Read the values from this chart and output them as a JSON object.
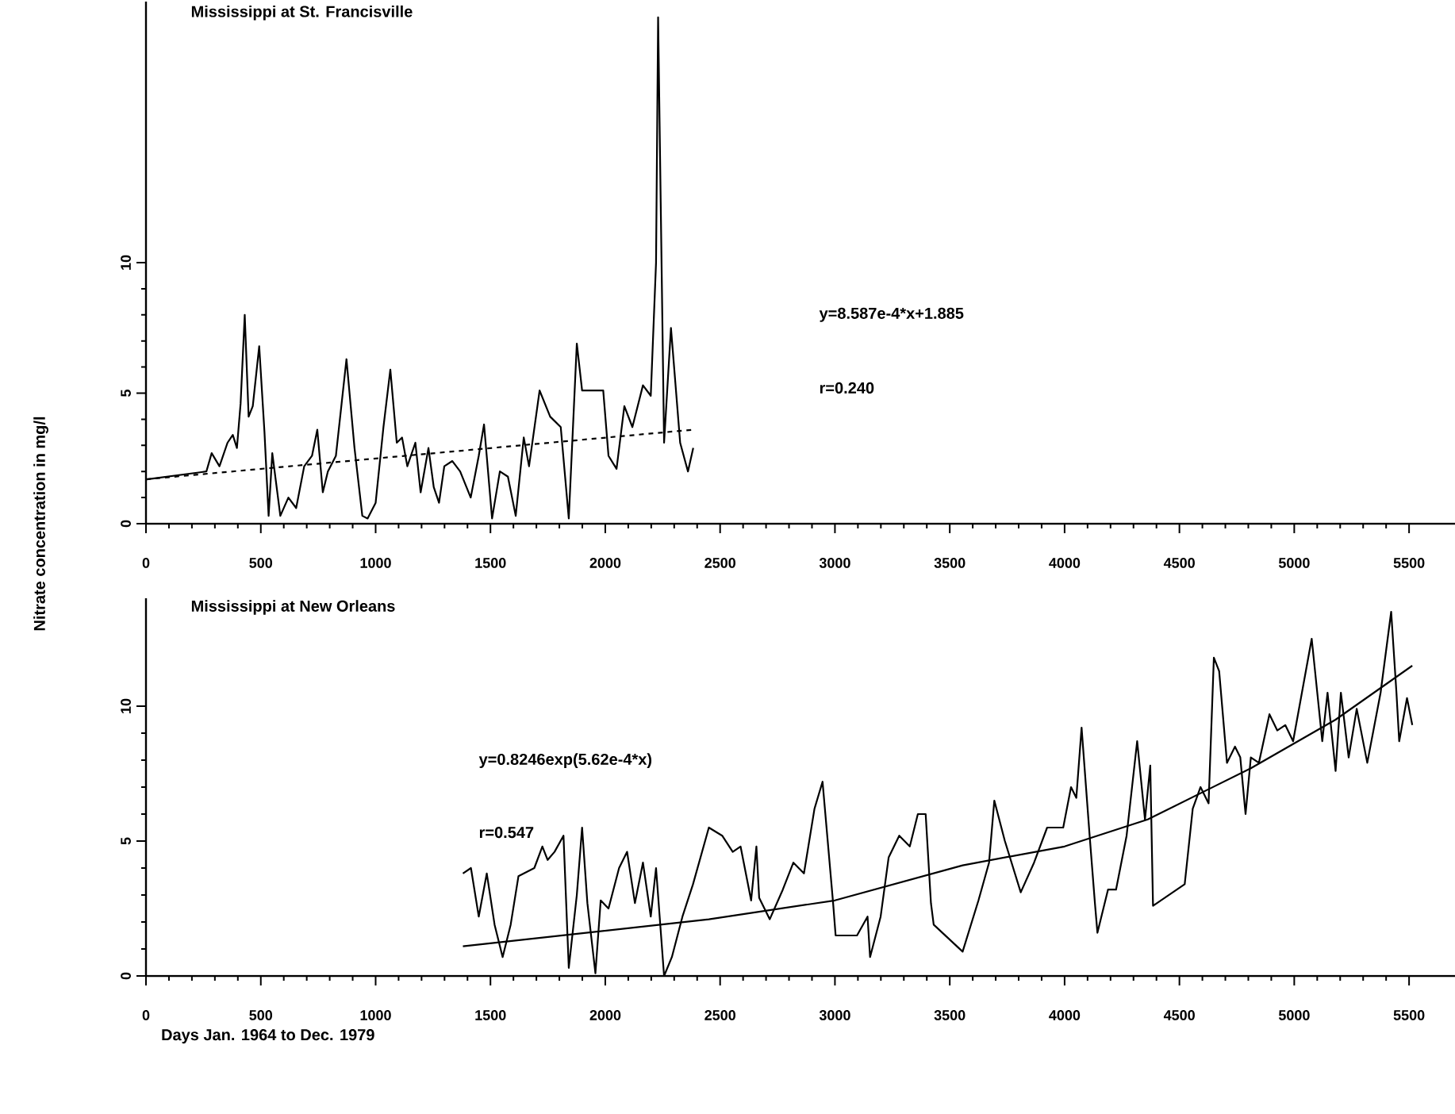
{
  "chart_data": [
    {
      "type": "line",
      "title": "Mississippi at St. Francisville",
      "ylabel": "Nitrate concentration in mg/l",
      "annotations": [
        "y=8.587e-4*x+1.885",
        "r=0.240"
      ],
      "xlim": [
        0,
        5700
      ],
      "ylim": [
        0,
        20
      ],
      "xticks": [
        0,
        500,
        1000,
        1500,
        2000,
        2500,
        3000,
        3500,
        4000,
        4500,
        5000,
        5500
      ],
      "yticks": [
        0,
        5,
        10
      ],
      "marker": "none",
      "series": [
        {
          "color": "#000000",
          "x": [
            4,
            263,
            286,
            320,
            355,
            378,
            396,
            412,
            430,
            447,
            465,
            493,
            516,
            534,
            550,
            585,
            620,
            654,
            689,
            723,
            746,
            770,
            792,
            827,
            873,
            908,
            942,
            965,
            1000,
            1034,
            1064,
            1092,
            1115,
            1138,
            1173,
            1196,
            1230,
            1253,
            1276,
            1299,
            1334,
            1368,
            1414,
            1449,
            1472,
            1507,
            1541,
            1576,
            1610,
            1645,
            1668,
            1714,
            1760,
            1806,
            1841,
            1876,
            1899,
            1991,
            2014,
            2049,
            2083,
            2118,
            2164,
            2198,
            2221,
            2230,
            2256,
            2286,
            2326,
            2360,
            2383
          ],
          "values": [
            1.7,
            2.0,
            2.7,
            2.2,
            3.1,
            3.4,
            2.9,
            4.6,
            8.0,
            4.1,
            4.5,
            6.8,
            3.5,
            0.3,
            2.7,
            0.3,
            1.0,
            0.6,
            2.2,
            2.6,
            3.6,
            1.2,
            2.0,
            2.6,
            6.3,
            2.9,
            0.3,
            0.2,
            0.8,
            3.7,
            5.9,
            3.1,
            3.3,
            2.2,
            3.1,
            1.2,
            2.9,
            1.4,
            0.8,
            2.2,
            2.4,
            2.0,
            1.0,
            2.6,
            3.8,
            0.2,
            2.0,
            1.8,
            0.3,
            3.3,
            2.2,
            5.1,
            4.1,
            3.7,
            0.2,
            6.9,
            5.1,
            5.1,
            2.6,
            2.1,
            4.5,
            3.7,
            5.3,
            4.9,
            10.0,
            19.4,
            3.1,
            7.5,
            3.1,
            2.0,
            2.9
          ]
        },
        {
          "color": "#000000",
          "line_style": "dashed",
          "x": [
            0,
            2383
          ],
          "values": [
            1.7,
            3.6
          ]
        }
      ]
    },
    {
      "type": "line",
      "title": "Mississippi at New Orleans",
      "xlabel": "Days Jan. 1964 to Dec. 1979",
      "annotations": [
        "y=0.8246exp(5.62e-4*x)",
        "r=0.547"
      ],
      "xlim": [
        0,
        5700
      ],
      "ylim": [
        0,
        14
      ],
      "xticks": [
        0,
        500,
        1000,
        1500,
        2000,
        2500,
        3000,
        3500,
        4000,
        4500,
        5000,
        5500
      ],
      "yticks": [
        0,
        5,
        10
      ],
      "marker": "none",
      "series": [
        {
          "color": "#000000",
          "x": [
            1380,
            1415,
            1449,
            1484,
            1518,
            1553,
            1588,
            1622,
            1691,
            1726,
            1749,
            1779,
            1818,
            1841,
            1876,
            1899,
            1922,
            1957,
            1980,
            2014,
            2060,
            2095,
            2129,
            2164,
            2198,
            2221,
            2256,
            2290,
            2336,
            2382,
            2451,
            2509,
            2555,
            2589,
            2635,
            2658,
            2670,
            2716,
            2773,
            2819,
            2865,
            2911,
            2946,
            2992,
            3003,
            3096,
            3142,
            3153,
            3199,
            3234,
            3280,
            3326,
            3361,
            3395,
            3418,
            3430,
            3556,
            3625,
            3671,
            3694,
            3740,
            3809,
            3867,
            3924,
            3994,
            4028,
            4051,
            4074,
            4109,
            4132,
            4143,
            4189,
            4224,
            4270,
            4316,
            4350,
            4373,
            4385,
            4523,
            4558,
            4592,
            4627,
            4650,
            4673,
            4707,
            4742,
            4765,
            4788,
            4811,
            4846,
            4892,
            4926,
            4961,
            4995,
            5076,
            5122,
            5145,
            5180,
            5203,
            5237,
            5272,
            5318,
            5376,
            5422,
            5445,
            5457,
            5491,
            5514
          ],
          "values": [
            3.8,
            4.0,
            2.2,
            3.8,
            1.9,
            0.7,
            1.9,
            3.7,
            4.0,
            4.8,
            4.3,
            4.6,
            5.2,
            0.3,
            3.0,
            5.5,
            2.7,
            0.1,
            2.8,
            2.5,
            4.0,
            4.6,
            2.7,
            4.2,
            2.2,
            4.0,
            0.0,
            0.7,
            2.2,
            3.4,
            5.5,
            5.2,
            4.6,
            4.8,
            2.8,
            4.8,
            2.9,
            2.1,
            3.2,
            4.2,
            3.8,
            6.2,
            7.2,
            2.7,
            1.5,
            1.5,
            2.2,
            0.7,
            2.2,
            4.4,
            5.2,
            4.8,
            6.0,
            6.0,
            2.7,
            1.9,
            0.9,
            2.8,
            4.2,
            6.5,
            5.0,
            3.1,
            4.2,
            5.5,
            5.5,
            7.0,
            6.6,
            9.2,
            5.2,
            2.7,
            1.6,
            3.2,
            3.2,
            5.2,
            8.7,
            5.8,
            7.8,
            2.6,
            3.4,
            6.2,
            7.0,
            6.4,
            11.8,
            11.3,
            7.9,
            8.5,
            8.1,
            6.0,
            8.1,
            7.9,
            9.7,
            9.1,
            9.3,
            8.7,
            12.5,
            8.7,
            10.5,
            7.6,
            10.5,
            8.1,
            9.9,
            7.9,
            10.5,
            13.5,
            10.5,
            8.7,
            10.3,
            9.3
          ]
        },
        {
          "color": "#000000",
          "x": [
            1380,
            2451,
            3000,
            3556,
            4000,
            4362,
            4811,
            5180,
            5514
          ],
          "values": [
            1.1,
            2.1,
            2.8,
            4.1,
            4.8,
            5.8,
            7.7,
            9.5,
            11.5
          ]
        }
      ]
    }
  ]
}
